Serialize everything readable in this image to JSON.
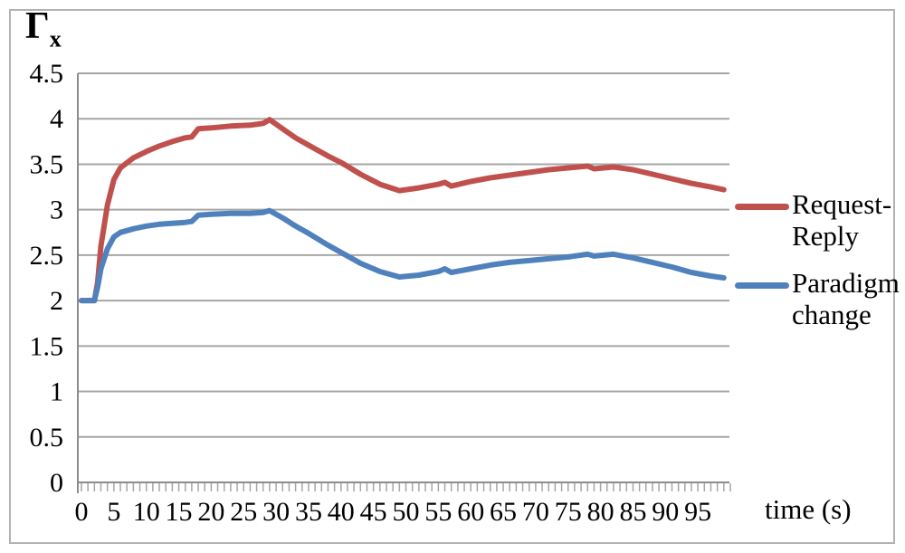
{
  "figure": {
    "y_axis_symbol": "Γ",
    "y_axis_subscript": "x",
    "x_axis_title": "time (s)"
  },
  "colors": {
    "request_reply": "#c0504d",
    "paradigm_change": "#4f81bd",
    "gridline": "#a6a6a6",
    "axis": "#8c8c8c",
    "tick": "#a6a6a6",
    "frame_border": "#b3b3b3",
    "text": "#000000"
  },
  "legend": {
    "items": [
      {
        "name": "Request-Reply",
        "line1": "Request-",
        "line2": "Reply",
        "color": "#c0504d"
      },
      {
        "name": "Paradigm change",
        "line1": "Paradigm",
        "line2": "change",
        "color": "#4f81bd"
      }
    ]
  },
  "chart_data": {
    "type": "line",
    "title": "",
    "ylabel": "Γx",
    "xlabel": "time (s)",
    "xlim": [
      0,
      100
    ],
    "ylim": [
      0,
      4.5
    ],
    "grid": "horizontal",
    "legend_position": "right-middle",
    "y_tick_labels": [
      "0",
      "0.5",
      "1",
      "1.5",
      "2",
      "2.5",
      "3",
      "3.5",
      "4",
      "4.5"
    ],
    "y_tick_values": [
      0,
      0.5,
      1,
      1.5,
      2,
      2.5,
      3,
      3.5,
      4,
      4.5
    ],
    "x_tick_labels": [
      "0",
      "5",
      "10",
      "15",
      "20",
      "25",
      "30",
      "35",
      "40",
      "45",
      "50",
      "55",
      "60",
      "65",
      "70",
      "75",
      "80",
      "85",
      "90",
      "95"
    ],
    "x_label_values": [
      0,
      5,
      10,
      15,
      20,
      25,
      30,
      35,
      40,
      45,
      50,
      55,
      60,
      65,
      70,
      75,
      80,
      85,
      90,
      95
    ],
    "x_minor_tick_step": 1,
    "series": [
      {
        "name": "Request-Reply",
        "color": "#c0504d",
        "points": [
          [
            0,
            2.0
          ],
          [
            2,
            2.0
          ],
          [
            2.5,
            2.2
          ],
          [
            3,
            2.6
          ],
          [
            4,
            3.05
          ],
          [
            5,
            3.33
          ],
          [
            6,
            3.46
          ],
          [
            8,
            3.57
          ],
          [
            10,
            3.64
          ],
          [
            12,
            3.7
          ],
          [
            14,
            3.75
          ],
          [
            16,
            3.79
          ],
          [
            17,
            3.8
          ],
          [
            18,
            3.89
          ],
          [
            20,
            3.9
          ],
          [
            23,
            3.92
          ],
          [
            26,
            3.93
          ],
          [
            28,
            3.95
          ],
          [
            29,
            3.99
          ],
          [
            31,
            3.89
          ],
          [
            33,
            3.79
          ],
          [
            35,
            3.71
          ],
          [
            38,
            3.59
          ],
          [
            40,
            3.52
          ],
          [
            43,
            3.39
          ],
          [
            46,
            3.28
          ],
          [
            49,
            3.21
          ],
          [
            52,
            3.24
          ],
          [
            55,
            3.28
          ],
          [
            56,
            3.3
          ],
          [
            57,
            3.26
          ],
          [
            60,
            3.31
          ],
          [
            63,
            3.35
          ],
          [
            66,
            3.38
          ],
          [
            69,
            3.41
          ],
          [
            72,
            3.44
          ],
          [
            75,
            3.46
          ],
          [
            78,
            3.48
          ],
          [
            79,
            3.45
          ],
          [
            82,
            3.47
          ],
          [
            85,
            3.44
          ],
          [
            88,
            3.39
          ],
          [
            91,
            3.34
          ],
          [
            94,
            3.29
          ],
          [
            97,
            3.25
          ],
          [
            99,
            3.22
          ]
        ]
      },
      {
        "name": "Paradigm change",
        "color": "#4f81bd",
        "points": [
          [
            0,
            2.0
          ],
          [
            2,
            2.0
          ],
          [
            2.5,
            2.15
          ],
          [
            3,
            2.35
          ],
          [
            4,
            2.57
          ],
          [
            5,
            2.7
          ],
          [
            6,
            2.75
          ],
          [
            8,
            2.79
          ],
          [
            10,
            2.82
          ],
          [
            12,
            2.84
          ],
          [
            14,
            2.85
          ],
          [
            16,
            2.86
          ],
          [
            17,
            2.87
          ],
          [
            18,
            2.94
          ],
          [
            20,
            2.95
          ],
          [
            23,
            2.96
          ],
          [
            26,
            2.96
          ],
          [
            28,
            2.97
          ],
          [
            29,
            2.99
          ],
          [
            31,
            2.91
          ],
          [
            33,
            2.82
          ],
          [
            35,
            2.74
          ],
          [
            38,
            2.61
          ],
          [
            40,
            2.53
          ],
          [
            43,
            2.41
          ],
          [
            46,
            2.32
          ],
          [
            49,
            2.26
          ],
          [
            52,
            2.28
          ],
          [
            55,
            2.32
          ],
          [
            56,
            2.35
          ],
          [
            57,
            2.31
          ],
          [
            60,
            2.35
          ],
          [
            63,
            2.39
          ],
          [
            66,
            2.42
          ],
          [
            69,
            2.44
          ],
          [
            72,
            2.46
          ],
          [
            75,
            2.48
          ],
          [
            78,
            2.51
          ],
          [
            79,
            2.49
          ],
          [
            82,
            2.51
          ],
          [
            85,
            2.47
          ],
          [
            88,
            2.42
          ],
          [
            91,
            2.37
          ],
          [
            94,
            2.31
          ],
          [
            97,
            2.27
          ],
          [
            99,
            2.25
          ]
        ]
      }
    ]
  }
}
